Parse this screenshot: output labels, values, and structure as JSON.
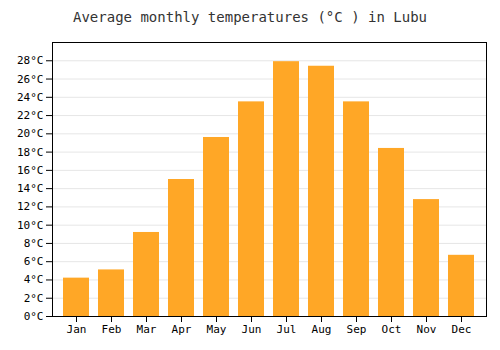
{
  "chart_data": {
    "type": "bar",
    "title": "Average monthly temperatures (°C ) in Lubu",
    "categories": [
      "Jan",
      "Feb",
      "Mar",
      "Apr",
      "May",
      "Jun",
      "Jul",
      "Aug",
      "Sep",
      "Oct",
      "Nov",
      "Dec"
    ],
    "values": [
      4.2,
      5.1,
      9.2,
      15.0,
      19.6,
      23.5,
      27.9,
      27.4,
      23.5,
      18.4,
      12.8,
      6.7
    ],
    "color": "#FFA726",
    "ylim": [
      0,
      30
    ],
    "yticks": [
      {
        "value": 0,
        "label": "0°C"
      },
      {
        "value": 2,
        "label": "2°C"
      },
      {
        "value": 4,
        "label": "4°C"
      },
      {
        "value": 6,
        "label": "6°C"
      },
      {
        "value": 8,
        "label": "8°C"
      },
      {
        "value": 10,
        "label": "10°C"
      },
      {
        "value": 12,
        "label": "12°C"
      },
      {
        "value": 14,
        "label": "14°C"
      },
      {
        "value": 16,
        "label": "16°C"
      },
      {
        "value": 18,
        "label": "18°C"
      },
      {
        "value": 20,
        "label": "20°C"
      },
      {
        "value": 22,
        "label": "22°C"
      },
      {
        "value": 24,
        "label": "24°C"
      },
      {
        "value": 26,
        "label": "26°C"
      },
      {
        "value": 28,
        "label": "28°C"
      }
    ],
    "grid": true
  }
}
